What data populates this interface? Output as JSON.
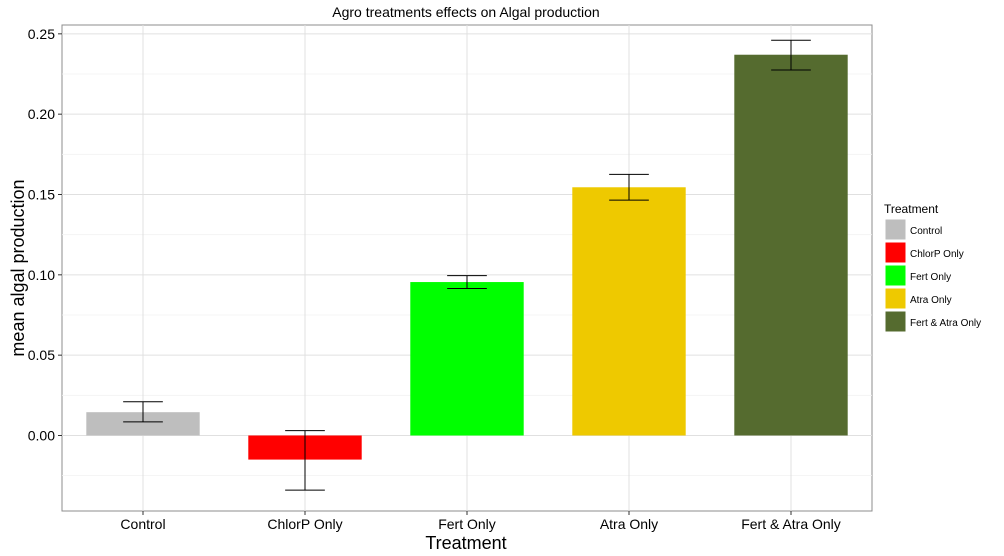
{
  "chart_data": {
    "type": "bar",
    "title": "Agro treatments effects on Algal production",
    "xlabel": "Treatment",
    "ylabel": "mean algal production",
    "categories": [
      "Control",
      "ChlorP Only",
      "Fert Only",
      "Atra Only",
      "Fert & Atra Only"
    ],
    "values": [
      0.0145,
      -0.015,
      0.0955,
      0.1545,
      0.237
    ],
    "error_low": [
      0.0085,
      -0.034,
      0.0915,
      0.1465,
      0.2275
    ],
    "error_high": [
      0.021,
      0.003,
      0.0995,
      0.1625,
      0.246
    ],
    "colors": [
      "#bebebe",
      "#ff0000",
      "#00ff00",
      "#eec900",
      "#556b2f"
    ],
    "ylim": [
      -0.047,
      0.2555
    ],
    "yticks": [
      0.0,
      0.05,
      0.1,
      0.15,
      0.2,
      0.25
    ],
    "ytick_labels": [
      "0.00",
      "0.05",
      "0.10",
      "0.15",
      "0.20",
      "0.25"
    ],
    "grid": true,
    "legend": {
      "title": "Treatment",
      "position": "right",
      "entries": [
        "Control",
        "ChlorP Only",
        "Fert Only",
        "Atra Only",
        "Fert & Atra Only"
      ]
    }
  }
}
